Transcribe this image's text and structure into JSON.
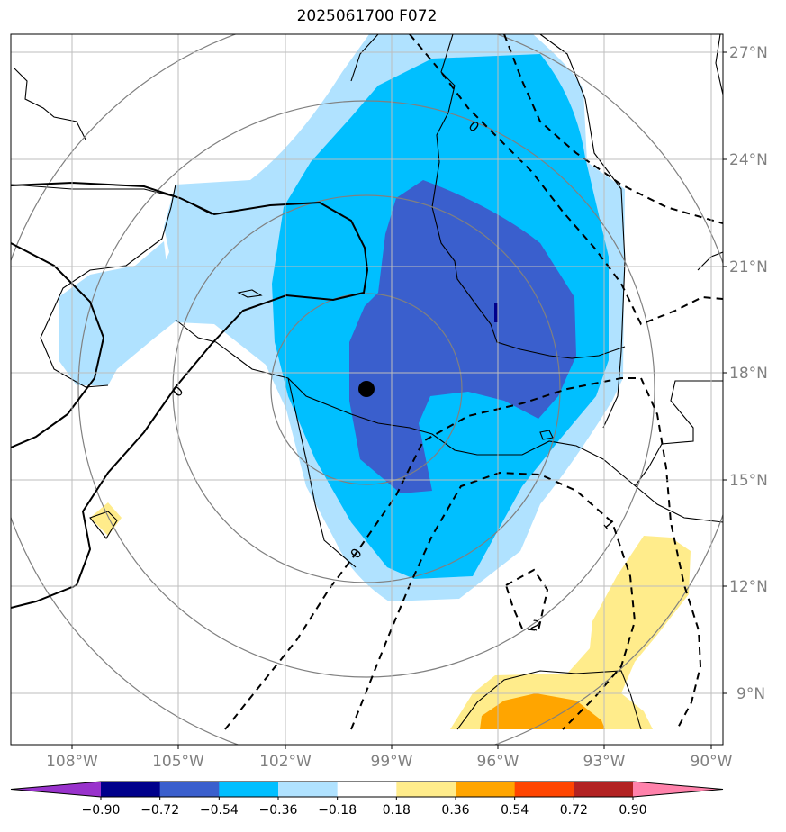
{
  "title": "2025061700 F072",
  "map": {
    "lon_range": [
      -109.5,
      -89.7
    ],
    "lat_range": [
      7.5,
      27.5
    ],
    "lon_labels": [
      "108°W",
      "105°W",
      "102°W",
      "99°W",
      "96°W",
      "93°W",
      "90°W"
    ],
    "lat_labels": [
      "27°N",
      "24°N",
      "21°N",
      "18°N",
      "15°N",
      "12°N",
      "9°N"
    ],
    "grid": true,
    "center_marker": {
      "lon": -99.8,
      "lat": 17.5,
      "color": "#000000"
    },
    "contour_labels": [
      "0",
      "0",
      "0",
      "1",
      "2"
    ]
  },
  "colorbar": {
    "levels": [
      "−0.90",
      "−0.72",
      "−0.54",
      "−0.36",
      "−0.18",
      "0.18",
      "0.36",
      "0.54",
      "0.72",
      "0.90"
    ],
    "colors": [
      "#9932cc",
      "#00008b",
      "#3a5fcd",
      "#00bfff",
      "#b0e2ff",
      "#ffffff",
      "#ffec8b",
      "#ffa500",
      "#ff4500",
      "#b22222",
      "#ff82ab"
    ]
  }
}
